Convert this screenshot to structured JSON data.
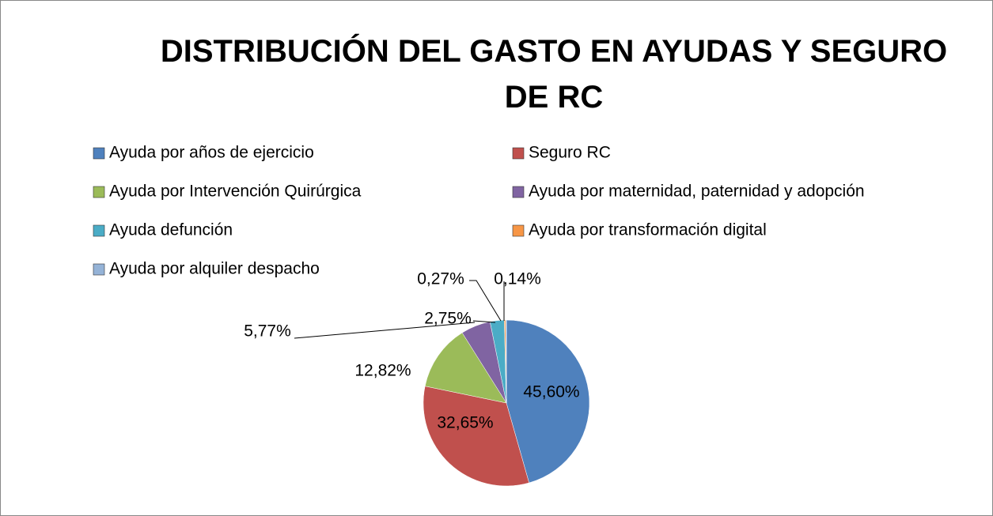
{
  "chart_data": {
    "type": "pie",
    "title": "DISTRIBUCIÓN DEL GASTO EN AYUDAS Y SEGURO DE RC",
    "categories": [
      "Ayuda por años de ejercicio",
      "Seguro RC",
      "Ayuda por Intervención Quirúrgica",
      "Ayuda por maternidad, paternidad y adopción",
      "Ayuda defunción",
      "Ayuda por transformación digital",
      "Ayuda por alquiler despacho"
    ],
    "values": [
      45.6,
      32.65,
      12.82,
      5.77,
      2.75,
      0.27,
      0.14
    ],
    "value_labels": [
      "45,60%",
      "32,65%",
      "12,82%",
      "5,77%",
      "2,75%",
      "0,27%",
      "0,14%"
    ],
    "colors": [
      "#4f81bd",
      "#c0504d",
      "#9bbb59",
      "#8064a2",
      "#4bacc6",
      "#f79646",
      "#95b3d7"
    ],
    "legend": "top"
  }
}
